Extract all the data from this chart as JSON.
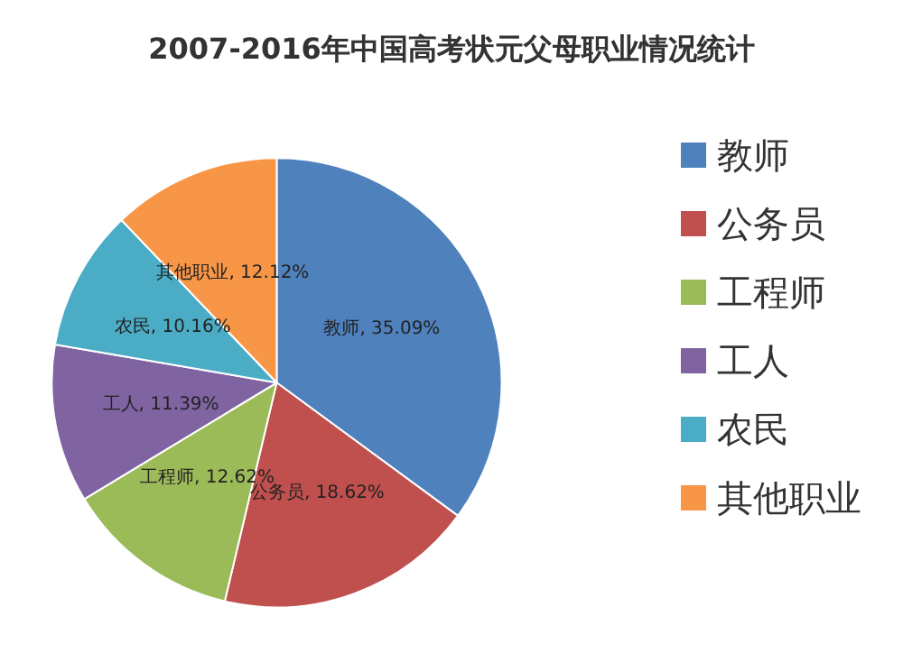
{
  "chart_data": {
    "type": "pie",
    "title": "2007-2016年中国高考状元父母职业情况统计",
    "categories": [
      "教师",
      "公务员",
      "工程师",
      "工人",
      "农民",
      "其他职业"
    ],
    "values": [
      35.09,
      18.62,
      12.62,
      11.39,
      10.16,
      12.12
    ],
    "colors": [
      "#4f81bd",
      "#c0504d",
      "#9bbb59",
      "#8064a2",
      "#4bacc6",
      "#f79646"
    ],
    "value_labels": [
      ", 35.09%",
      ", 18.62%",
      ", 12.62%",
      ", 11.39%",
      ", 10.16%",
      ", 12.12%"
    ],
    "legend": "right"
  }
}
